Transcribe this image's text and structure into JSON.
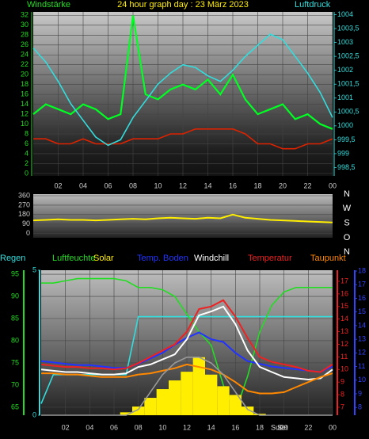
{
  "chart_data": [
    {
      "type": "line",
      "title": "24 hour graph day : 23 März 2023",
      "ylabel": "Windstärke",
      "y2label": "Luftdruck",
      "grid": true,
      "x": [
        0,
        1,
        2,
        3,
        4,
        5,
        6,
        7,
        8,
        9,
        10,
        11,
        12,
        13,
        14,
        15,
        16,
        17,
        18,
        19,
        20,
        21,
        22,
        23,
        24
      ],
      "xlim": [
        0,
        24
      ],
      "xticks": [
        {
          "value": 2,
          "label": "02"
        },
        {
          "value": 4,
          "label": "04"
        },
        {
          "value": 6,
          "label": "06"
        },
        {
          "value": 8,
          "label": "08"
        },
        10,
        12,
        14,
        16,
        18,
        20,
        22,
        {
          "value": 24,
          "label": "00"
        }
      ],
      "ylim": [
        -0.5,
        32.7
      ],
      "yticks": [
        0,
        2,
        4,
        6,
        8,
        10,
        12,
        14,
        16,
        18,
        20,
        22,
        24,
        26,
        28,
        30,
        32
      ],
      "y2lim": [
        998.2,
        1004.1
      ],
      "y2ticks": [
        {
          "value": 998.5,
          "label": "998,5"
        },
        999,
        {
          "value": 999.5,
          "label": "999,5"
        },
        1000,
        {
          "value": 1000.5,
          "label": "1000,5"
        },
        1001,
        {
          "value": 1001.5,
          "label": "1001,5"
        },
        1002,
        {
          "value": 1002.5,
          "label": "1002,5"
        },
        1003,
        {
          "value": 1003.5,
          "label": "1003,5"
        },
        1004
      ],
      "series": [
        {
          "color": "#00ff22",
          "values": [
            12,
            14,
            13,
            12,
            14,
            13,
            11,
            12,
            32,
            16,
            15,
            17,
            18,
            17,
            19,
            16,
            20,
            15,
            12,
            13,
            14,
            11,
            12,
            10,
            9
          ]
        },
        {
          "color": "#dd2200",
          "values": [
            7,
            7,
            6,
            6,
            7,
            6,
            6,
            6,
            7,
            7,
            7,
            8,
            8,
            9,
            9,
            9,
            9,
            8,
            6,
            6,
            5,
            5,
            6,
            6,
            7
          ]
        },
        {
          "color": "#33dddd",
          "axis": "y2",
          "values": [
            1002.8,
            1002.3,
            1001.6,
            1000.8,
            1000.2,
            999.6,
            999.3,
            999.5,
            1000.3,
            1000.9,
            1001.5,
            1001.9,
            1002.2,
            1002.1,
            1001.8,
            1001.6,
            1002.0,
            1002.5,
            1002.9,
            1003.3,
            1003.1,
            1002.5,
            1001.9,
            1001.2,
            1000.3
          ]
        }
      ]
    },
    {
      "type": "line",
      "grid": true,
      "x": [
        0,
        1,
        2,
        3,
        4,
        5,
        6,
        7,
        8,
        9,
        10,
        11,
        12,
        13,
        14,
        15,
        16,
        17,
        18,
        19,
        20,
        21,
        22,
        23,
        24
      ],
      "xlim": [
        0,
        24
      ],
      "ylim": [
        -40,
        375
      ],
      "yticks": [
        0,
        90,
        180,
        270,
        360
      ],
      "direction_labels": [
        "N",
        "W",
        "S",
        "O",
        "N"
      ],
      "series": [
        {
          "color": "#ffee00",
          "values": [
            125,
            130,
            135,
            130,
            130,
            125,
            130,
            135,
            140,
            135,
            145,
            150,
            145,
            140,
            150,
            145,
            180,
            150,
            140,
            130,
            125,
            120,
            115,
            110,
            105
          ]
        }
      ]
    },
    {
      "type": "line",
      "grid": true,
      "x": [
        0,
        1,
        2,
        3,
        4,
        5,
        6,
        7,
        8,
        9,
        10,
        11,
        12,
        13,
        14,
        15,
        16,
        17,
        18,
        19,
        20,
        21,
        22,
        23,
        24
      ],
      "xlim": [
        0,
        24
      ],
      "xticks": [
        {
          "value": 2,
          "label": "02"
        },
        {
          "value": 4,
          "label": "04"
        },
        {
          "value": 6,
          "label": "06"
        },
        {
          "value": 8,
          "label": "08"
        },
        10,
        12,
        14,
        16,
        18,
        20,
        22,
        {
          "value": 24,
          "label": "00"
        }
      ],
      "axes": {
        "rain": {
          "lim": [
            0,
            5
          ],
          "ticks": [
            0,
            5
          ],
          "color": "#33dddd"
        },
        "humidity": {
          "lim": [
            63.2,
            95.9
          ],
          "ticks": [
            65,
            70,
            75,
            80,
            85,
            90,
            95
          ],
          "color": "#22dd22"
        },
        "temp": {
          "lim": [
            6.37,
            17.88
          ],
          "ticks": [
            7,
            8,
            9,
            10,
            11,
            12,
            13,
            14,
            15,
            16,
            17
          ],
          "color": "#ee2222"
        },
        "ground": {
          "lim": [
            7.43,
            18.06
          ],
          "ticks": [
            8,
            9,
            10,
            11,
            12,
            13,
            14,
            15,
            16,
            17,
            18
          ],
          "color": "#3344ff"
        }
      },
      "annotations": [
        "Sun",
        "Set"
      ],
      "series": [
        {
          "name": "Regen",
          "color": "#33dddd",
          "axis": "rain",
          "values": [
            0.4,
            1.4,
            1.4,
            1.4,
            1.4,
            1.4,
            1.4,
            1.4,
            3.4,
            3.4,
            3.4,
            3.4,
            3.4,
            3.4,
            3.4,
            3.4,
            3.4,
            3.4,
            3.4,
            3.4,
            3.4,
            3.4,
            3.4,
            3.4,
            3.4
          ]
        },
        {
          "name": "Luftfeuchte",
          "color": "#22dd22",
          "axis": "humidity",
          "values": [
            93,
            93,
            93.5,
            94,
            94,
            94,
            94,
            93.5,
            92,
            92,
            91.5,
            90,
            86,
            82,
            79,
            70,
            64,
            72,
            82,
            88,
            91,
            92,
            92,
            92,
            92
          ]
        },
        {
          "name": "Solar",
          "color": "#ffee00",
          "axis": "rain",
          "style": "bars",
          "values": [
            0,
            0,
            0,
            0,
            0,
            0,
            0,
            0.1,
            0.3,
            0.6,
            0.9,
            1.2,
            1.5,
            2.0,
            1.4,
            1.0,
            0.7,
            0.3,
            0.05,
            0,
            0,
            0,
            0,
            0,
            0
          ]
        },
        {
          "name": "Temp. Boden",
          "color": "#2233ff",
          "axis": "ground",
          "values": [
            11.4,
            11.3,
            11.2,
            11.1,
            11.1,
            11.0,
            10.9,
            10.9,
            11.2,
            11.6,
            12.0,
            12.6,
            13.1,
            13.5,
            13.0,
            12.8,
            12.0,
            11.4,
            11.2,
            11.0,
            10.9,
            10.8,
            10.7,
            10.6,
            11.0
          ]
        },
        {
          "name": "Windchill",
          "color": "#ffffff",
          "axis": "temp",
          "values": [
            10.0,
            9.9,
            9.8,
            9.8,
            9.7,
            9.6,
            9.6,
            9.7,
            10.2,
            10.4,
            10.8,
            11.2,
            12.4,
            14.3,
            14.6,
            15.0,
            13.6,
            11.5,
            10.2,
            9.8,
            9.4,
            9.3,
            9.2,
            9.3,
            10.0
          ]
        },
        {
          "name": "Temperatur",
          "color": "#ee2222",
          "axis": "temp",
          "values": [
            10.4,
            10.3,
            10.2,
            10.2,
            10.1,
            10.1,
            10.0,
            10.1,
            10.5,
            11.0,
            11.5,
            12.0,
            13.0,
            14.8,
            15.0,
            15.5,
            14.2,
            12.5,
            11.0,
            10.6,
            10.4,
            10.2,
            9.9,
            9.8,
            10.4
          ]
        },
        {
          "name": "Taupunkt",
          "color": "#ff8800",
          "axis": "temp",
          "values": [
            9.7,
            9.7,
            9.6,
            9.6,
            9.5,
            9.4,
            9.4,
            9.4,
            9.6,
            9.7,
            9.9,
            10.1,
            10.4,
            10.2,
            10.0,
            9.6,
            9.0,
            8.3,
            8.1,
            8.1,
            8.2,
            8.6,
            9.0,
            9.4,
            9.7
          ]
        },
        {
          "color": "#999999",
          "axis": "rain",
          "values": [
            0,
            0,
            0,
            0,
            0,
            0,
            0,
            0,
            0.2,
            0.8,
            1.4,
            1.8,
            2.0,
            2.0,
            1.8,
            1.4,
            0.8,
            0.2,
            0,
            0,
            0,
            0,
            0,
            0,
            0
          ]
        }
      ]
    }
  ]
}
